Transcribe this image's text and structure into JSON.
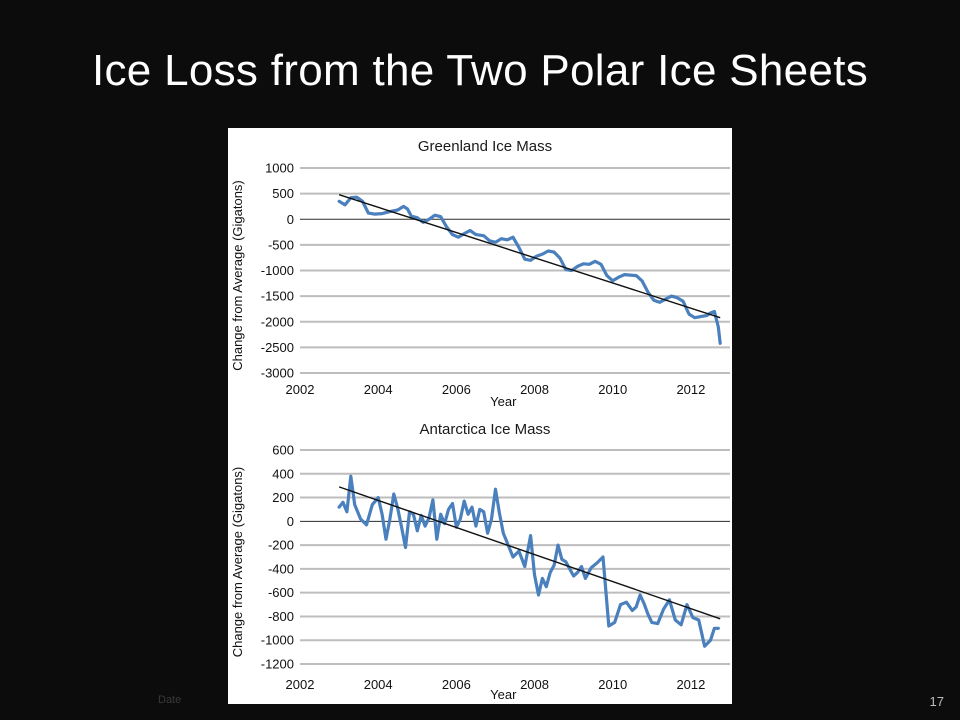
{
  "slide": {
    "title": "Ice Loss from the Two Polar Ice Sheets",
    "footer_left": "Date",
    "page_number": "17"
  },
  "colors": {
    "background": "#0c0c0c",
    "series": "#4a80bd",
    "trend": "#111111",
    "grid": "#bdbdbd"
  },
  "chart_data": [
    {
      "type": "line",
      "title": "Greenland Ice Mass",
      "xlabel": "Year",
      "ylabel": "Change from Average (Gigatons)",
      "xlim": [
        2002,
        2013
      ],
      "ylim": [
        -3000,
        1000
      ],
      "xticks": [
        2002,
        2004,
        2006,
        2008,
        2010,
        2012
      ],
      "yticks": [
        1000,
        500,
        0,
        -500,
        -1000,
        -1500,
        -2000,
        -2500,
        -3000
      ],
      "grid": true,
      "legend": "none",
      "series": [
        {
          "x": [
            2003.0,
            2003.15,
            2003.3,
            2003.45,
            2003.6,
            2003.75,
            2003.9,
            2004.1,
            2004.3,
            2004.5,
            2004.65,
            2004.75,
            2004.85,
            2005.0,
            2005.15,
            2005.3,
            2005.45,
            2005.6,
            2005.75,
            2005.9,
            2006.05,
            2006.2,
            2006.35,
            2006.5,
            2006.7,
            2006.85,
            2007.0,
            2007.15,
            2007.3,
            2007.45,
            2007.6,
            2007.75,
            2007.9,
            2008.05,
            2008.2,
            2008.35,
            2008.5,
            2008.65,
            2008.8,
            2008.95,
            2009.1,
            2009.25,
            2009.4,
            2009.55,
            2009.7,
            2009.85,
            2010.0,
            2010.15,
            2010.3,
            2010.45,
            2010.6,
            2010.75,
            2010.9,
            2011.05,
            2011.2,
            2011.35,
            2011.5,
            2011.65,
            2011.8,
            2011.95,
            2012.1,
            2012.25,
            2012.4,
            2012.5,
            2012.6,
            2012.7,
            2012.75
          ],
          "values": [
            350,
            280,
            420,
            430,
            350,
            120,
            100,
            110,
            150,
            180,
            250,
            200,
            60,
            30,
            -60,
            0,
            80,
            50,
            -150,
            -300,
            -350,
            -280,
            -220,
            -300,
            -320,
            -420,
            -450,
            -380,
            -400,
            -350,
            -550,
            -780,
            -800,
            -720,
            -680,
            -620,
            -640,
            -760,
            -980,
            -1000,
            -920,
            -870,
            -880,
            -820,
            -880,
            -1100,
            -1200,
            -1130,
            -1080,
            -1090,
            -1100,
            -1200,
            -1420,
            -1580,
            -1620,
            -1560,
            -1500,
            -1530,
            -1600,
            -1850,
            -1920,
            -1900,
            -1880,
            -1830,
            -1800,
            -2100,
            -2420
          ]
        },
        {
          "name": "Trend",
          "x": [
            2003.0,
            2012.75
          ],
          "values": [
            480,
            -1920
          ]
        }
      ]
    },
    {
      "type": "line",
      "title": "Antarctica Ice Mass",
      "xlabel": "Year",
      "ylabel": "Change from Average (Gigatons)",
      "xlim": [
        2002,
        2013
      ],
      "ylim": [
        -1200,
        600
      ],
      "xticks": [
        2002,
        2004,
        2006,
        2008,
        2010,
        2012
      ],
      "yticks": [
        600,
        400,
        200,
        0,
        -200,
        -400,
        -600,
        -800,
        -1000,
        -1200
      ],
      "grid": true,
      "legend": "none",
      "series": [
        {
          "x": [
            2003.0,
            2003.1,
            2003.2,
            2003.3,
            2003.4,
            2003.55,
            2003.7,
            2003.85,
            2004.0,
            2004.1,
            2004.2,
            2004.3,
            2004.4,
            2004.5,
            2004.6,
            2004.7,
            2004.8,
            2004.9,
            2005.0,
            2005.1,
            2005.2,
            2005.3,
            2005.4,
            2005.5,
            2005.6,
            2005.7,
            2005.8,
            2005.9,
            2006.0,
            2006.1,
            2006.2,
            2006.3,
            2006.4,
            2006.5,
            2006.6,
            2006.7,
            2006.8,
            2006.9,
            2007.0,
            2007.1,
            2007.2,
            2007.3,
            2007.45,
            2007.6,
            2007.75,
            2007.9,
            2008.0,
            2008.1,
            2008.2,
            2008.3,
            2008.4,
            2008.5,
            2008.6,
            2008.7,
            2008.8,
            2008.9,
            2009.0,
            2009.1,
            2009.2,
            2009.3,
            2009.45,
            2009.6,
            2009.75,
            2009.9,
            2010.05,
            2010.2,
            2010.35,
            2010.5,
            2010.6,
            2010.7,
            2010.8,
            2010.9,
            2011.0,
            2011.15,
            2011.3,
            2011.45,
            2011.6,
            2011.75,
            2011.9,
            2012.05,
            2012.2,
            2012.35,
            2012.5,
            2012.6,
            2012.7
          ],
          "values": [
            120,
            160,
            80,
            380,
            140,
            20,
            -30,
            140,
            200,
            60,
            -150,
            20,
            230,
            110,
            -50,
            -220,
            80,
            60,
            -80,
            50,
            -40,
            30,
            180,
            -150,
            60,
            -20,
            100,
            150,
            -50,
            20,
            170,
            60,
            120,
            -40,
            100,
            80,
            -100,
            20,
            270,
            70,
            -100,
            -180,
            -300,
            -250,
            -380,
            -120,
            -450,
            -620,
            -480,
            -550,
            -430,
            -370,
            -200,
            -320,
            -340,
            -400,
            -460,
            -430,
            -380,
            -480,
            -390,
            -350,
            -300,
            -880,
            -850,
            -700,
            -680,
            -750,
            -720,
            -620,
            -690,
            -780,
            -850,
            -860,
            -740,
            -660,
            -830,
            -870,
            -700,
            -810,
            -830,
            -1050,
            -1000,
            -900,
            -900
          ]
        },
        {
          "name": "Trend",
          "x": [
            2003.0,
            2012.75
          ],
          "values": [
            290,
            -820
          ]
        }
      ]
    }
  ]
}
